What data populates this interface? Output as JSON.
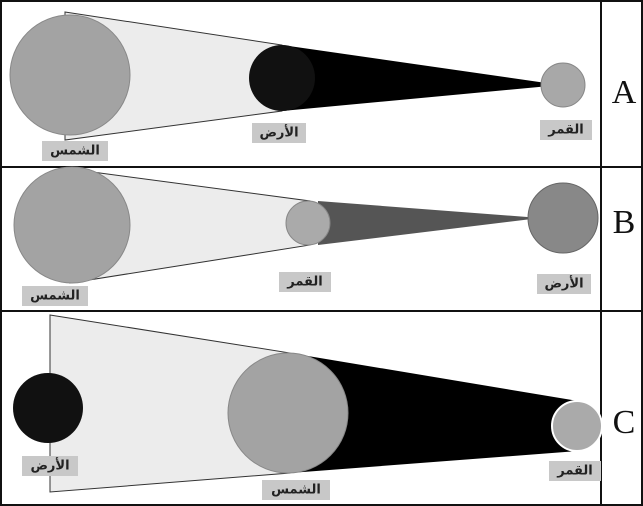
{
  "rows": [
    {
      "letter": "A",
      "bodies": [
        "الشمس",
        "الأرض",
        "القمر"
      ]
    },
    {
      "letter": "B",
      "bodies": [
        "الشمس",
        "القمر",
        "الأرض"
      ]
    },
    {
      "letter": "C",
      "bodies": [
        "الأرض",
        "الشمس",
        "القمر"
      ]
    }
  ]
}
